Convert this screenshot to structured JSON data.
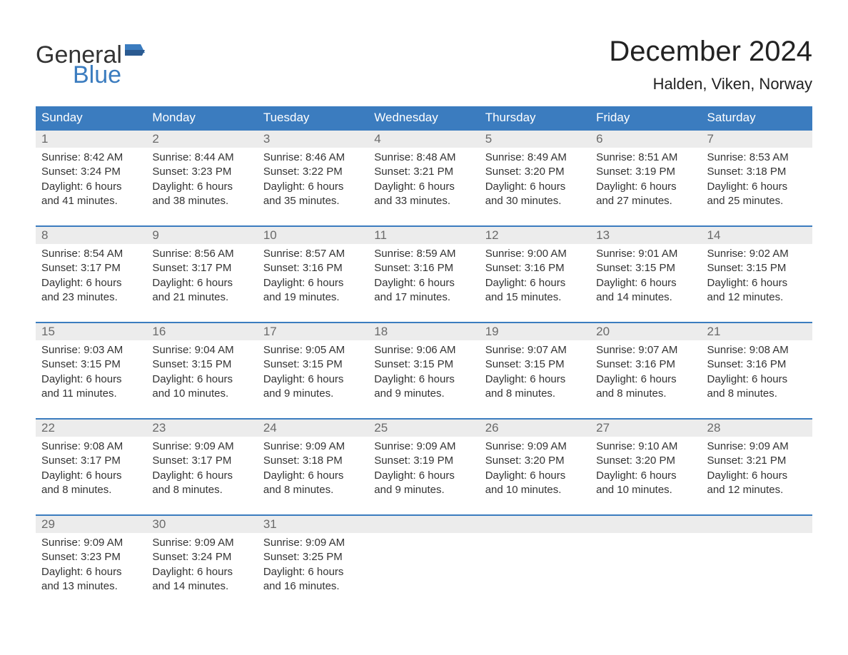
{
  "logo": {
    "word1": "General",
    "word2": "Blue",
    "color_dark": "#333333",
    "color_blue": "#3b7cbf"
  },
  "title": "December 2024",
  "location": "Halden, Viken, Norway",
  "colors": {
    "header_bg": "#3b7cbf",
    "header_text": "#ffffff",
    "daynum_bg": "#ececec",
    "daynum_text": "#6a6a6a",
    "detail_text": "#333333",
    "week_border": "#3b7cbf",
    "page_bg": "#ffffff"
  },
  "fonts": {
    "title_size_pt": 30,
    "location_size_pt": 17,
    "header_size_pt": 13,
    "body_size_pt": 11
  },
  "days_of_week": [
    "Sunday",
    "Monday",
    "Tuesday",
    "Wednesday",
    "Thursday",
    "Friday",
    "Saturday"
  ],
  "weeks": [
    {
      "days": [
        {
          "num": "1",
          "sunrise": "Sunrise: 8:42 AM",
          "sunset": "Sunset: 3:24 PM",
          "daylight1": "Daylight: 6 hours",
          "daylight2": "and 41 minutes."
        },
        {
          "num": "2",
          "sunrise": "Sunrise: 8:44 AM",
          "sunset": "Sunset: 3:23 PM",
          "daylight1": "Daylight: 6 hours",
          "daylight2": "and 38 minutes."
        },
        {
          "num": "3",
          "sunrise": "Sunrise: 8:46 AM",
          "sunset": "Sunset: 3:22 PM",
          "daylight1": "Daylight: 6 hours",
          "daylight2": "and 35 minutes."
        },
        {
          "num": "4",
          "sunrise": "Sunrise: 8:48 AM",
          "sunset": "Sunset: 3:21 PM",
          "daylight1": "Daylight: 6 hours",
          "daylight2": "and 33 minutes."
        },
        {
          "num": "5",
          "sunrise": "Sunrise: 8:49 AM",
          "sunset": "Sunset: 3:20 PM",
          "daylight1": "Daylight: 6 hours",
          "daylight2": "and 30 minutes."
        },
        {
          "num": "6",
          "sunrise": "Sunrise: 8:51 AM",
          "sunset": "Sunset: 3:19 PM",
          "daylight1": "Daylight: 6 hours",
          "daylight2": "and 27 minutes."
        },
        {
          "num": "7",
          "sunrise": "Sunrise: 8:53 AM",
          "sunset": "Sunset: 3:18 PM",
          "daylight1": "Daylight: 6 hours",
          "daylight2": "and 25 minutes."
        }
      ]
    },
    {
      "days": [
        {
          "num": "8",
          "sunrise": "Sunrise: 8:54 AM",
          "sunset": "Sunset: 3:17 PM",
          "daylight1": "Daylight: 6 hours",
          "daylight2": "and 23 minutes."
        },
        {
          "num": "9",
          "sunrise": "Sunrise: 8:56 AM",
          "sunset": "Sunset: 3:17 PM",
          "daylight1": "Daylight: 6 hours",
          "daylight2": "and 21 minutes."
        },
        {
          "num": "10",
          "sunrise": "Sunrise: 8:57 AM",
          "sunset": "Sunset: 3:16 PM",
          "daylight1": "Daylight: 6 hours",
          "daylight2": "and 19 minutes."
        },
        {
          "num": "11",
          "sunrise": "Sunrise: 8:59 AM",
          "sunset": "Sunset: 3:16 PM",
          "daylight1": "Daylight: 6 hours",
          "daylight2": "and 17 minutes."
        },
        {
          "num": "12",
          "sunrise": "Sunrise: 9:00 AM",
          "sunset": "Sunset: 3:16 PM",
          "daylight1": "Daylight: 6 hours",
          "daylight2": "and 15 minutes."
        },
        {
          "num": "13",
          "sunrise": "Sunrise: 9:01 AM",
          "sunset": "Sunset: 3:15 PM",
          "daylight1": "Daylight: 6 hours",
          "daylight2": "and 14 minutes."
        },
        {
          "num": "14",
          "sunrise": "Sunrise: 9:02 AM",
          "sunset": "Sunset: 3:15 PM",
          "daylight1": "Daylight: 6 hours",
          "daylight2": "and 12 minutes."
        }
      ]
    },
    {
      "days": [
        {
          "num": "15",
          "sunrise": "Sunrise: 9:03 AM",
          "sunset": "Sunset: 3:15 PM",
          "daylight1": "Daylight: 6 hours",
          "daylight2": "and 11 minutes."
        },
        {
          "num": "16",
          "sunrise": "Sunrise: 9:04 AM",
          "sunset": "Sunset: 3:15 PM",
          "daylight1": "Daylight: 6 hours",
          "daylight2": "and 10 minutes."
        },
        {
          "num": "17",
          "sunrise": "Sunrise: 9:05 AM",
          "sunset": "Sunset: 3:15 PM",
          "daylight1": "Daylight: 6 hours",
          "daylight2": "and 9 minutes."
        },
        {
          "num": "18",
          "sunrise": "Sunrise: 9:06 AM",
          "sunset": "Sunset: 3:15 PM",
          "daylight1": "Daylight: 6 hours",
          "daylight2": "and 9 minutes."
        },
        {
          "num": "19",
          "sunrise": "Sunrise: 9:07 AM",
          "sunset": "Sunset: 3:15 PM",
          "daylight1": "Daylight: 6 hours",
          "daylight2": "and 8 minutes."
        },
        {
          "num": "20",
          "sunrise": "Sunrise: 9:07 AM",
          "sunset": "Sunset: 3:16 PM",
          "daylight1": "Daylight: 6 hours",
          "daylight2": "and 8 minutes."
        },
        {
          "num": "21",
          "sunrise": "Sunrise: 9:08 AM",
          "sunset": "Sunset: 3:16 PM",
          "daylight1": "Daylight: 6 hours",
          "daylight2": "and 8 minutes."
        }
      ]
    },
    {
      "days": [
        {
          "num": "22",
          "sunrise": "Sunrise: 9:08 AM",
          "sunset": "Sunset: 3:17 PM",
          "daylight1": "Daylight: 6 hours",
          "daylight2": "and 8 minutes."
        },
        {
          "num": "23",
          "sunrise": "Sunrise: 9:09 AM",
          "sunset": "Sunset: 3:17 PM",
          "daylight1": "Daylight: 6 hours",
          "daylight2": "and 8 minutes."
        },
        {
          "num": "24",
          "sunrise": "Sunrise: 9:09 AM",
          "sunset": "Sunset: 3:18 PM",
          "daylight1": "Daylight: 6 hours",
          "daylight2": "and 8 minutes."
        },
        {
          "num": "25",
          "sunrise": "Sunrise: 9:09 AM",
          "sunset": "Sunset: 3:19 PM",
          "daylight1": "Daylight: 6 hours",
          "daylight2": "and 9 minutes."
        },
        {
          "num": "26",
          "sunrise": "Sunrise: 9:09 AM",
          "sunset": "Sunset: 3:20 PM",
          "daylight1": "Daylight: 6 hours",
          "daylight2": "and 10 minutes."
        },
        {
          "num": "27",
          "sunrise": "Sunrise: 9:10 AM",
          "sunset": "Sunset: 3:20 PM",
          "daylight1": "Daylight: 6 hours",
          "daylight2": "and 10 minutes."
        },
        {
          "num": "28",
          "sunrise": "Sunrise: 9:09 AM",
          "sunset": "Sunset: 3:21 PM",
          "daylight1": "Daylight: 6 hours",
          "daylight2": "and 12 minutes."
        }
      ]
    },
    {
      "days": [
        {
          "num": "29",
          "sunrise": "Sunrise: 9:09 AM",
          "sunset": "Sunset: 3:23 PM",
          "daylight1": "Daylight: 6 hours",
          "daylight2": "and 13 minutes."
        },
        {
          "num": "30",
          "sunrise": "Sunrise: 9:09 AM",
          "sunset": "Sunset: 3:24 PM",
          "daylight1": "Daylight: 6 hours",
          "daylight2": "and 14 minutes."
        },
        {
          "num": "31",
          "sunrise": "Sunrise: 9:09 AM",
          "sunset": "Sunset: 3:25 PM",
          "daylight1": "Daylight: 6 hours",
          "daylight2": "and 16 minutes."
        },
        {
          "num": "",
          "sunrise": "",
          "sunset": "",
          "daylight1": "",
          "daylight2": ""
        },
        {
          "num": "",
          "sunrise": "",
          "sunset": "",
          "daylight1": "",
          "daylight2": ""
        },
        {
          "num": "",
          "sunrise": "",
          "sunset": "",
          "daylight1": "",
          "daylight2": ""
        },
        {
          "num": "",
          "sunrise": "",
          "sunset": "",
          "daylight1": "",
          "daylight2": ""
        }
      ]
    }
  ]
}
